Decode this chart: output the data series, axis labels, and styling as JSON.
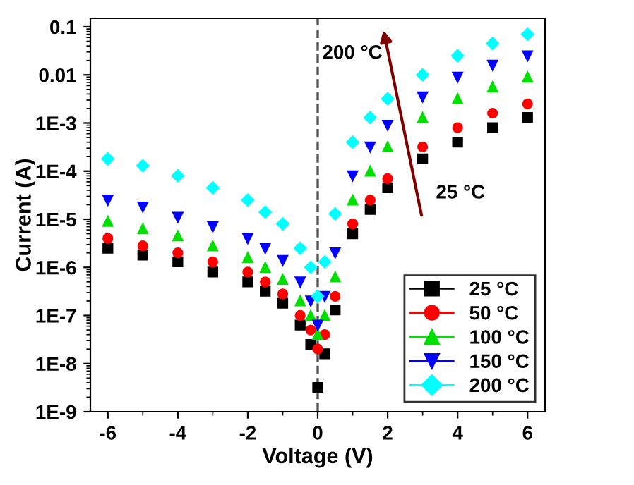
{
  "chart_data": {
    "type": "scatter",
    "xlabel": "Voltage (V)",
    "ylabel": "Current (A)",
    "log": "y",
    "x": [
      -6,
      -5,
      -4,
      -3,
      -2,
      -1.5,
      -1,
      -0.5,
      -0.2,
      0,
      0.2,
      0.5,
      1,
      1.5,
      2,
      3,
      4,
      5,
      6
    ],
    "series": [
      {
        "name": "25 °C",
        "color": "#000000",
        "marker": "square",
        "values": [
          2.5e-06,
          1.8e-06,
          1.3e-06,
          8e-07,
          5e-07,
          3.2e-07,
          1.8e-07,
          6.3e-08,
          2.5e-08,
          3.2e-09,
          1.6e-08,
          1.3e-07,
          5e-06,
          1.6e-05,
          4.5e-05,
          0.00018,
          0.0004,
          0.0008,
          0.0013
        ]
      },
      {
        "name": "50 °C",
        "color": "#ff0000",
        "marker": "circle",
        "values": [
          4e-06,
          2.8e-06,
          2e-06,
          1.3e-06,
          8e-07,
          5e-07,
          2.8e-07,
          1e-07,
          5e-08,
          2e-08,
          4e-08,
          2.5e-07,
          8e-06,
          2.5e-05,
          7e-05,
          0.00032,
          0.0008,
          0.0016,
          0.0025
        ]
      },
      {
        "name": "100 °C",
        "color": "#00e000",
        "marker": "triangle",
        "values": [
          9e-06,
          6.3e-06,
          4.5e-06,
          2.8e-06,
          1.6e-06,
          1e-06,
          5.6e-07,
          2e-07,
          1e-07,
          4e-08,
          1e-07,
          6.3e-07,
          2.5e-05,
          0.0001,
          0.00032,
          0.0013,
          0.0032,
          0.0056,
          0.009
        ]
      },
      {
        "name": "150 °C",
        "color": "#0000ff",
        "marker": "triangle_down",
        "values": [
          2.5e-05,
          1.8e-05,
          1.1e-05,
          7e-06,
          4e-06,
          2.5e-06,
          1.4e-06,
          5e-07,
          2e-07,
          6.3e-08,
          2.5e-07,
          2e-06,
          8e-05,
          0.00032,
          0.0009,
          0.0035,
          0.009,
          0.016,
          0.025
        ]
      },
      {
        "name": "200 °C",
        "color": "#00ffff",
        "marker": "diamond",
        "values": [
          0.00018,
          0.00013,
          8e-05,
          4.5e-05,
          2.5e-05,
          1.4e-05,
          8e-06,
          2.5e-06,
          1e-06,
          2.5e-07,
          1.3e-06,
          1.3e-05,
          0.0004,
          0.0013,
          0.0032,
          0.01,
          0.025,
          0.045,
          0.07
        ]
      }
    ],
    "xlim": [
      -6.5,
      6.5
    ],
    "xticks": [
      -6,
      -4,
      -2,
      0,
      2,
      4,
      6
    ],
    "ylim": [
      1e-09,
      0.15
    ],
    "yticks": [
      {
        "value": 1e-09,
        "label": "1E-9"
      },
      {
        "value": 1e-08,
        "label": "1E-8"
      },
      {
        "value": 1e-07,
        "label": "1E-7"
      },
      {
        "value": 1e-06,
        "label": "1E-6"
      },
      {
        "value": 1e-05,
        "label": "1E-5"
      },
      {
        "value": 0.0001,
        "label": "1E-4"
      },
      {
        "value": 0.001,
        "label": "1E-3"
      },
      {
        "value": 0.01,
        "label": "0.01"
      },
      {
        "value": 0.1,
        "label": "0.1"
      }
    ],
    "ref_lines": [
      {
        "axis": "x",
        "value": 0,
        "color": "#555555",
        "line_style": "dashed"
      }
    ],
    "annotations": [
      "200 °C",
      "25 °C"
    ],
    "legend": "bottom right",
    "grid": false
  }
}
